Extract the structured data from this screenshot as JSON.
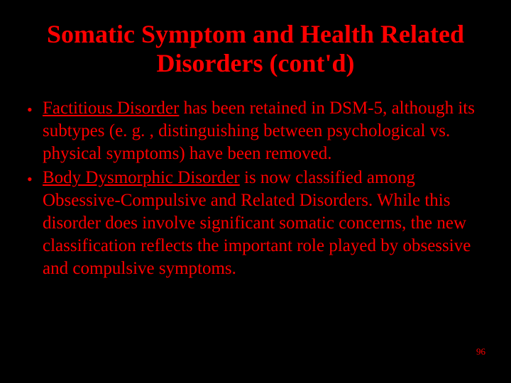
{
  "colors": {
    "background": "#000000",
    "text": "#ff0000",
    "title": "#ff0000"
  },
  "typography": {
    "family": "Times New Roman",
    "title_fontsize_pt": 36,
    "title_weight": "bold",
    "body_fontsize_pt": 25,
    "pagenum_fontsize_pt": 13
  },
  "title": "Somatic Symptom and Health Related Disorders (cont'd)",
  "bullets": [
    {
      "lead_underlined": "Factitious Disorder",
      "rest": " has been retained in DSM-5, although its subtypes (e. g. , distinguishing between psychological vs. physical symptoms) have been removed."
    },
    {
      "lead_underlined": "Body Dysmorphic Disorder",
      "rest": " is now classified among Obsessive-Compulsive and Related Disorders. While this disorder does involve significant somatic concerns, the new classification reflects the important role played by obsessive and compulsive symptoms."
    }
  ],
  "page_number": "96"
}
